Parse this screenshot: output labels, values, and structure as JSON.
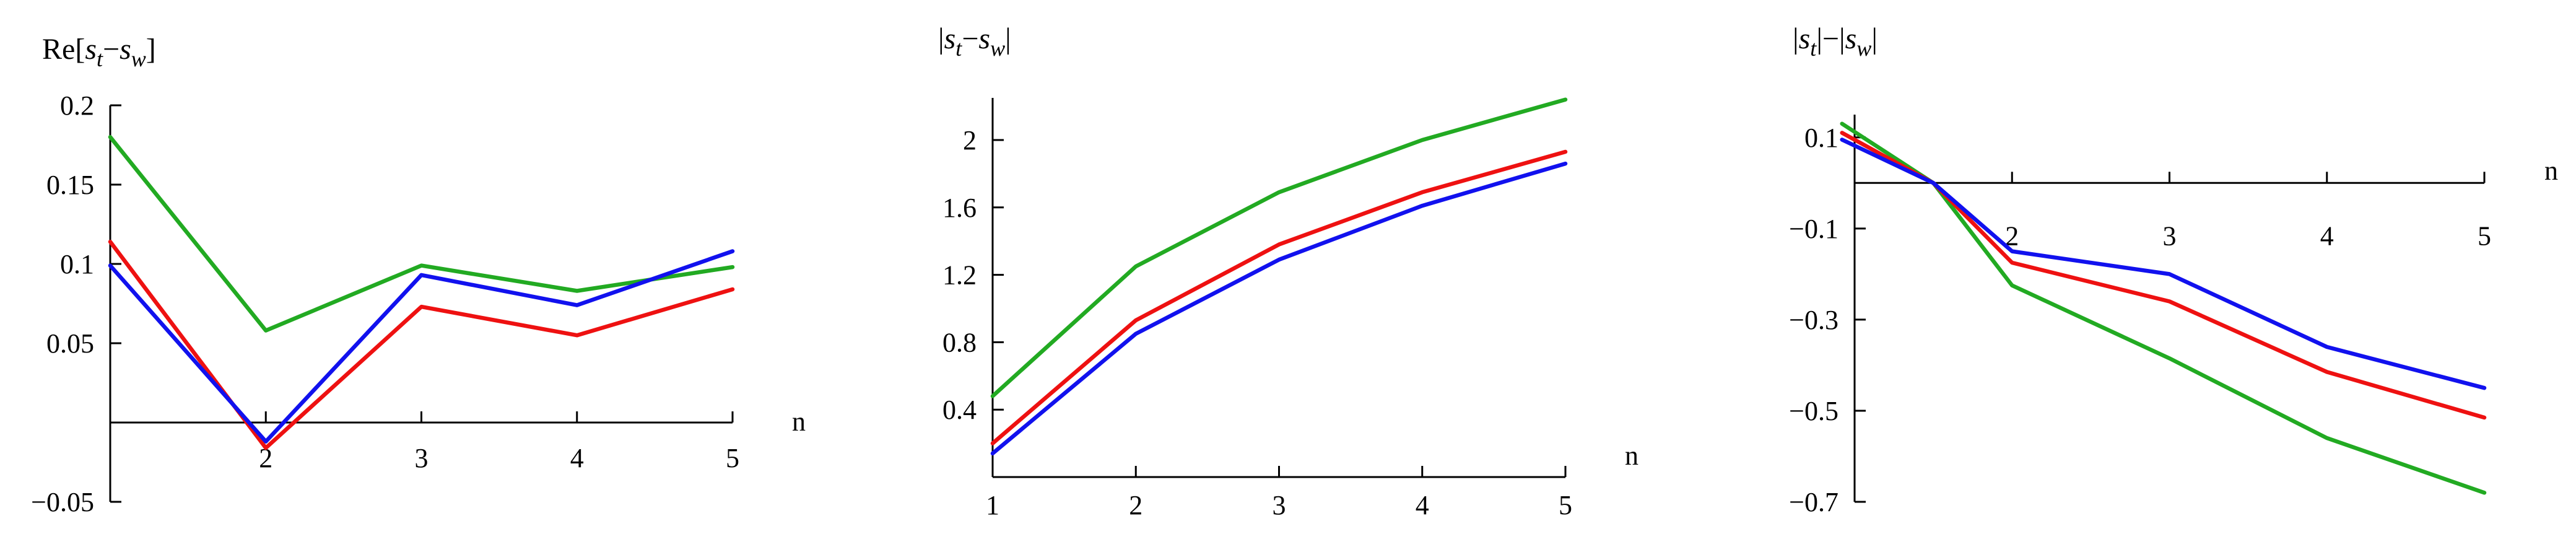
{
  "chart_data": [
    {
      "type": "line",
      "ylabel_parts": [
        "Re[",
        "s",
        "t",
        "−",
        "s",
        "w",
        "]"
      ],
      "xlabel": "n",
      "x": [
        1,
        2,
        3,
        4,
        5
      ],
      "xlim": [
        1,
        5
      ],
      "ylim": [
        -0.05,
        0.2
      ],
      "x_axis_at": 0,
      "xticks": [
        2,
        3,
        4,
        5
      ],
      "xtick_labels": [
        "2",
        "3",
        "4",
        "5"
      ],
      "yticks": [
        -0.05,
        0.05,
        0.1,
        0.15,
        0.2
      ],
      "ytick_labels": [
        "−0.05",
        "0.05",
        "0.1",
        "0.15",
        "0.2"
      ],
      "series": [
        {
          "color": "#22aa22",
          "values": [
            0.18,
            0.058,
            0.099,
            0.083,
            0.098
          ]
        },
        {
          "color": "#ee1111",
          "values": [
            0.114,
            -0.016,
            0.073,
            0.055,
            0.084
          ]
        },
        {
          "color": "#1111ee",
          "values": [
            0.099,
            -0.012,
            0.093,
            0.074,
            0.108
          ]
        }
      ]
    },
    {
      "type": "line",
      "ylabel_parts": [
        "|",
        "s",
        "t",
        "−",
        "s",
        "w",
        "|"
      ],
      "xlabel": "n",
      "x": [
        1,
        2,
        3,
        4,
        5
      ],
      "xlim": [
        1,
        5
      ],
      "ylim": [
        0.0,
        2.25
      ],
      "x_axis_at": 0.0,
      "xticks": [
        1,
        2,
        3,
        4,
        5
      ],
      "xtick_labels": [
        "1",
        "2",
        "3",
        "4",
        "5"
      ],
      "yticks": [
        0.4,
        0.8,
        1.2,
        1.6,
        2.0
      ],
      "ytick_labels": [
        "0.4",
        "0.8",
        "1.2",
        "1.6",
        "2"
      ],
      "series": [
        {
          "color": "#22aa22",
          "values": [
            0.48,
            1.25,
            1.69,
            2.0,
            2.24
          ]
        },
        {
          "color": "#ee1111",
          "values": [
            0.2,
            0.93,
            1.38,
            1.69,
            1.93
          ]
        },
        {
          "color": "#1111ee",
          "values": [
            0.14,
            0.85,
            1.29,
            1.61,
            1.86
          ]
        }
      ]
    },
    {
      "type": "line",
      "ylabel_parts": [
        "|",
        "s",
        "t",
        "|−|",
        "s",
        "w",
        "|"
      ],
      "xlabel": "n",
      "x": [
        1,
        2,
        3,
        4,
        5
      ],
      "xlim": [
        1,
        5
      ],
      "ylim": [
        -0.7,
        0.15
      ],
      "x_axis_at": 0,
      "xticks": [
        2,
        3,
        4,
        5
      ],
      "xtick_labels": [
        "2",
        "3",
        "4",
        "5"
      ],
      "yticks": [
        -0.7,
        -0.5,
        -0.3,
        -0.1,
        0.1
      ],
      "ytick_labels": [
        "−0.7",
        "−0.5",
        "−0.3",
        "−0.1",
        "0.1"
      ],
      "series": [
        {
          "color": "#22aa22",
          "x": [
            0.92,
            1.5,
            2,
            3,
            4,
            5
          ],
          "values": [
            0.13,
            0.0,
            -0.225,
            -0.385,
            -0.56,
            -0.68
          ]
        },
        {
          "color": "#ee1111",
          "x": [
            0.92,
            1.5,
            2,
            3,
            4,
            5
          ],
          "values": [
            0.11,
            0.0,
            -0.175,
            -0.26,
            -0.415,
            -0.515
          ]
        },
        {
          "color": "#1111ee",
          "x": [
            0.92,
            1.5,
            2,
            3,
            4,
            5
          ],
          "values": [
            0.095,
            0.0,
            -0.15,
            -0.2,
            -0.36,
            -0.45
          ]
        }
      ]
    }
  ]
}
